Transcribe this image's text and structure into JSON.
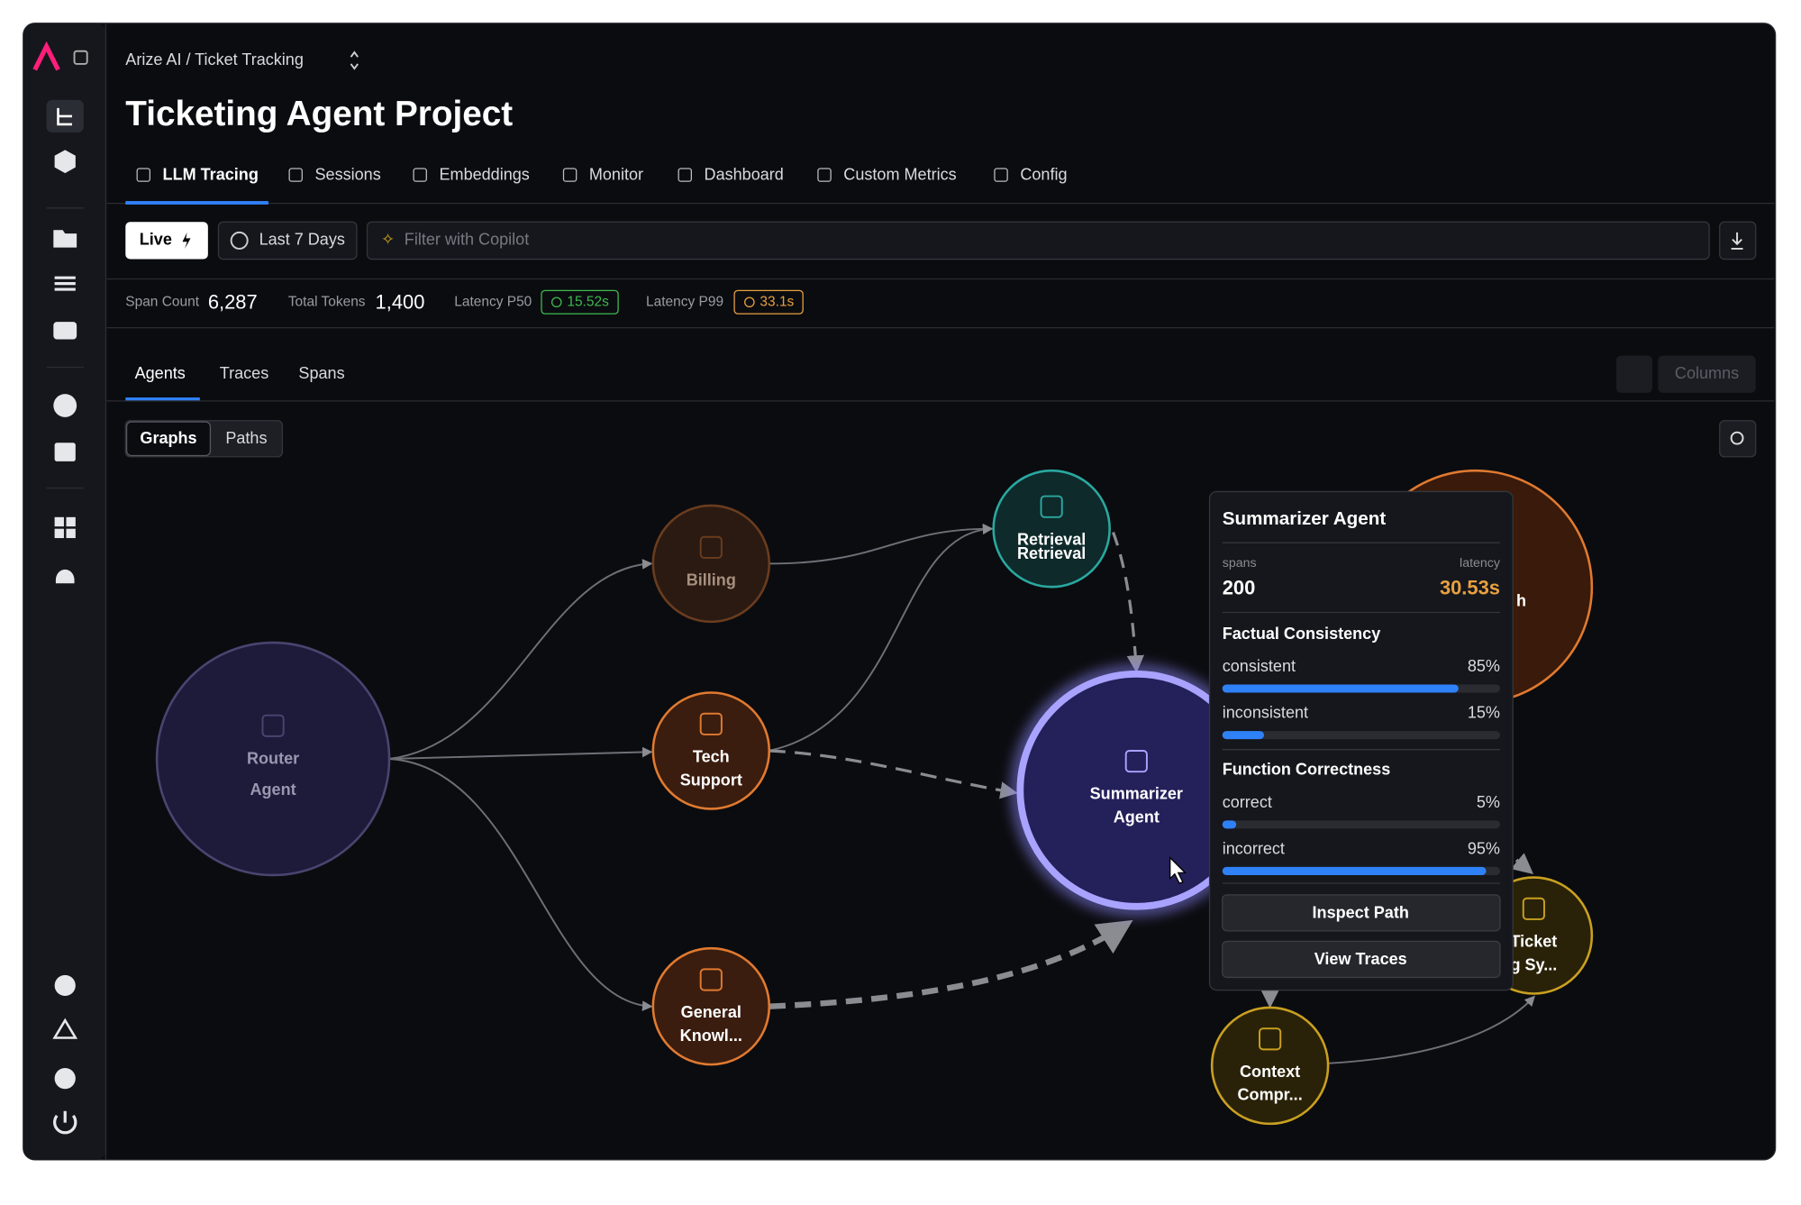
{
  "header": {
    "breadcrumb": "Arize AI / Ticket Tracking",
    "title": "Ticketing Agent Project"
  },
  "tabs": [
    "LLM Tracing",
    "Sessions",
    "Embeddings",
    "Monitor",
    "Dashboard",
    "Custom Metrics",
    "Config"
  ],
  "toolbar": {
    "live": "Live",
    "time_range": "Last 7 Days",
    "filter_placeholder": "Filter with Copilot"
  },
  "stats": [
    {
      "label": "Span Count",
      "value": "6,287"
    },
    {
      "label": "Total Tokens",
      "value": "1,400"
    },
    {
      "label": "Latency P50",
      "value": "15.52s"
    },
    {
      "label": "Latency P99",
      "value": "33.1s"
    }
  ],
  "subtabs": [
    "Agents",
    "Traces",
    "Spans"
  ],
  "columns_button": "Columns",
  "view_toggle": [
    "Graphs",
    "Paths"
  ],
  "nodes": [
    {
      "label": [
        "Router",
        "Agent"
      ]
    },
    {
      "label": [
        "Billing"
      ]
    },
    {
      "label": [
        "Tech",
        "Support"
      ]
    },
    {
      "label": [
        "General",
        "Knowl..."
      ]
    },
    {
      "label": [
        "Retrieval",
        "Retrieval"
      ]
    },
    {
      "label": [
        "Summarizer",
        "Agent"
      ]
    },
    {
      "label": [
        "h"
      ]
    },
    {
      "label": [
        "Ticket",
        "g Sy..."
      ]
    },
    {
      "label": [
        "Context",
        "Compr..."
      ]
    }
  ],
  "tooltip": {
    "title": "Summarizer Agent",
    "spans_label": "spans",
    "latency_label": "latency",
    "spans": "200",
    "latency": "30.53s",
    "sections": [
      {
        "title": "Factual Consistency",
        "metrics": [
          {
            "name": "consistent",
            "value": 85,
            "label": "85%"
          },
          {
            "name": "inconsistent",
            "value": 15,
            "label": "15%"
          }
        ]
      },
      {
        "title": "Function Correctness",
        "metrics": [
          {
            "name": "correct",
            "value": 5,
            "label": "5%"
          },
          {
            "name": "incorrect",
            "value": 95,
            "label": "95%"
          }
        ]
      }
    ],
    "buttons": [
      "Inspect Path",
      "View Traces"
    ]
  }
}
